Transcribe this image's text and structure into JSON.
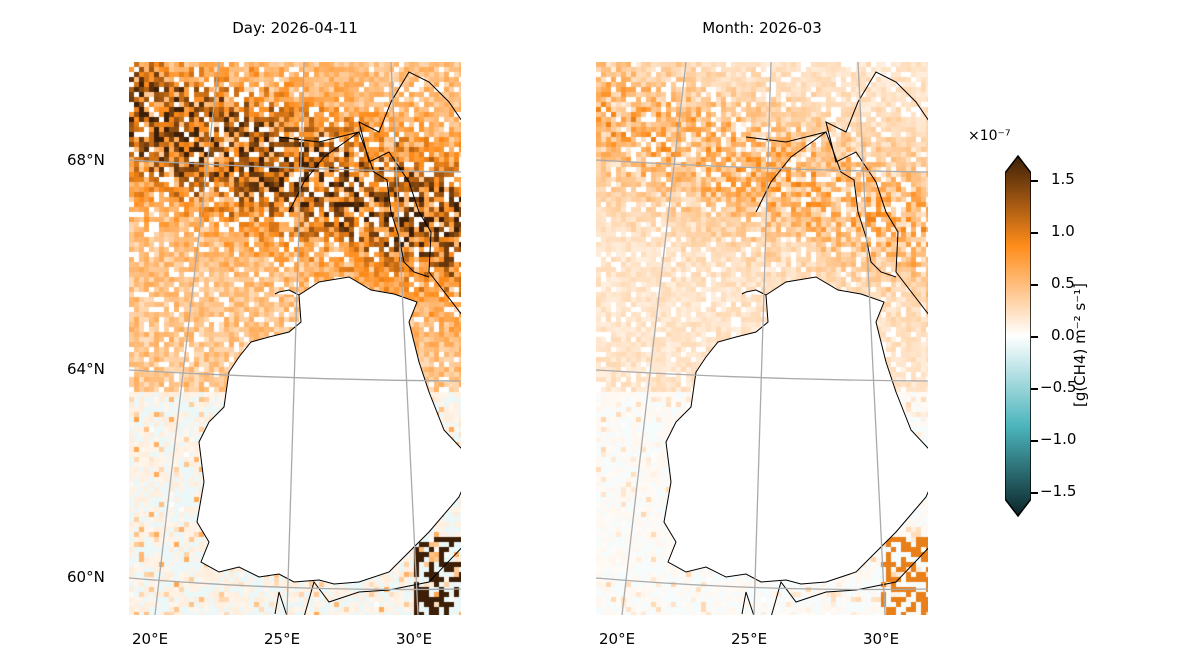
{
  "panels": [
    {
      "title": "Day: 2026-04-11",
      "intensity": 1.0
    },
    {
      "title": "Month: 2026-03",
      "intensity": 0.45
    }
  ],
  "lat_labels": [
    "68°N",
    "64°N",
    "60°N"
  ],
  "lon_labels": [
    "20°E",
    "25°E",
    "30°E"
  ],
  "colorbar": {
    "exponent": "×10⁻⁷",
    "ticks": [
      "1.5",
      "1.0",
      "0.5",
      "0.0",
      "−0.5",
      "−1.0",
      "−1.5"
    ],
    "label": "[g(CH4) m⁻² s⁻¹]",
    "range": [
      -1.5,
      1.5
    ],
    "colors": {
      "max": "#3d1f08",
      "pos": "#ff8c1a",
      "zero": "#ffffff",
      "neg": "#4cb5bd",
      "min": "#0a2428"
    }
  }
}
